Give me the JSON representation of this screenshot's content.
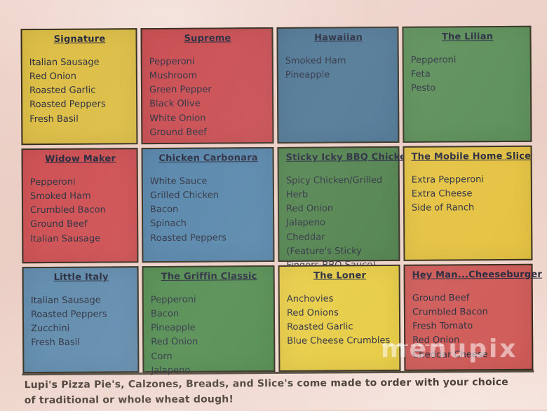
{
  "menu": {
    "cells": [
      {
        "title": "Signature",
        "bg": "#dcbd44",
        "ingredients": [
          "Italian Sausage",
          "Red Onion",
          "Roasted Garlic",
          "Roasted Peppers",
          "Fresh Basil"
        ]
      },
      {
        "title": "Supreme",
        "bg": "#c84a4e",
        "ingredients": [
          "Pepperoni",
          "Mushroom",
          "Green Pepper",
          "Black Olive",
          "White Onion",
          "Ground Beef"
        ]
      },
      {
        "title": "Hawaiian",
        "bg": "#4a7392",
        "ingredients": [
          "Smoked Ham",
          "Pineapple"
        ]
      },
      {
        "title": "The Lilian",
        "bg": "#578c54",
        "ingredients": [
          "Pepperoni",
          "Feta",
          "Pesto"
        ]
      },
      {
        "title": "Widow Maker",
        "bg": "#cd4d50",
        "ingredients": [
          "Pepperoni",
          "Smoked Ham",
          "Crumbled Bacon",
          "Ground Beef",
          "Italian Sausage"
        ]
      },
      {
        "title": "Chicken Carbonara",
        "bg": "#5282a8",
        "ingredients": [
          "White Sauce",
          "Grilled Chicken",
          "Bacon",
          "Spinach",
          "Roasted Peppers"
        ]
      },
      {
        "title": "Sticky Icky BBQ Chicken",
        "bg": "#4d8049",
        "ingredients": [
          "Spicy Chicken/Grilled Herb",
          "Red Onion",
          "Jalapeno",
          "Cheddar",
          "(Feature's Sticky Fingers BBQ Sauce)"
        ]
      },
      {
        "title": "The Mobile Home Slice",
        "bg": "#e4c13e",
        "ingredients": [
          "Extra Pepperoni",
          "Extra Cheese",
          "Side of Ranch"
        ]
      },
      {
        "title": "Little Italy",
        "bg": "#5d89ab",
        "ingredients": [
          "Italian Sausage",
          "Roasted Peppers",
          "Zucchini",
          "Fresh Basil"
        ]
      },
      {
        "title": "The Griffin Classic",
        "bg": "#4e8a4c",
        "ingredients": [
          "Pepperoni",
          "Bacon",
          "Pineapple",
          "Red Onion",
          "Corn",
          "Jalapeno"
        ]
      },
      {
        "title": "The Loner",
        "bg": "#e7cb41",
        "ingredients": [
          "Anchovies",
          "Red Onions",
          "Roasted Garlic",
          "Blue Cheese Crumbles"
        ]
      },
      {
        "title": "Hey Man...Cheeseburger",
        "bg": "#cf5a57",
        "ingredients": [
          "Ground Beef",
          "Crumbled Bacon",
          "Fresh Tomato",
          "Red Onion",
          "Cheddar Cheese"
        ]
      }
    ],
    "footer": "Lupi's Pizza Pie's, Calzones, Breads, and Slice's come made to order with your choice of traditional or whole wheat dough!"
  },
  "watermark": {
    "text": "menupix"
  },
  "colors": {
    "ink": "#2a2d3d",
    "paper": "#eed3ca",
    "cell_border": "#322b1c"
  }
}
